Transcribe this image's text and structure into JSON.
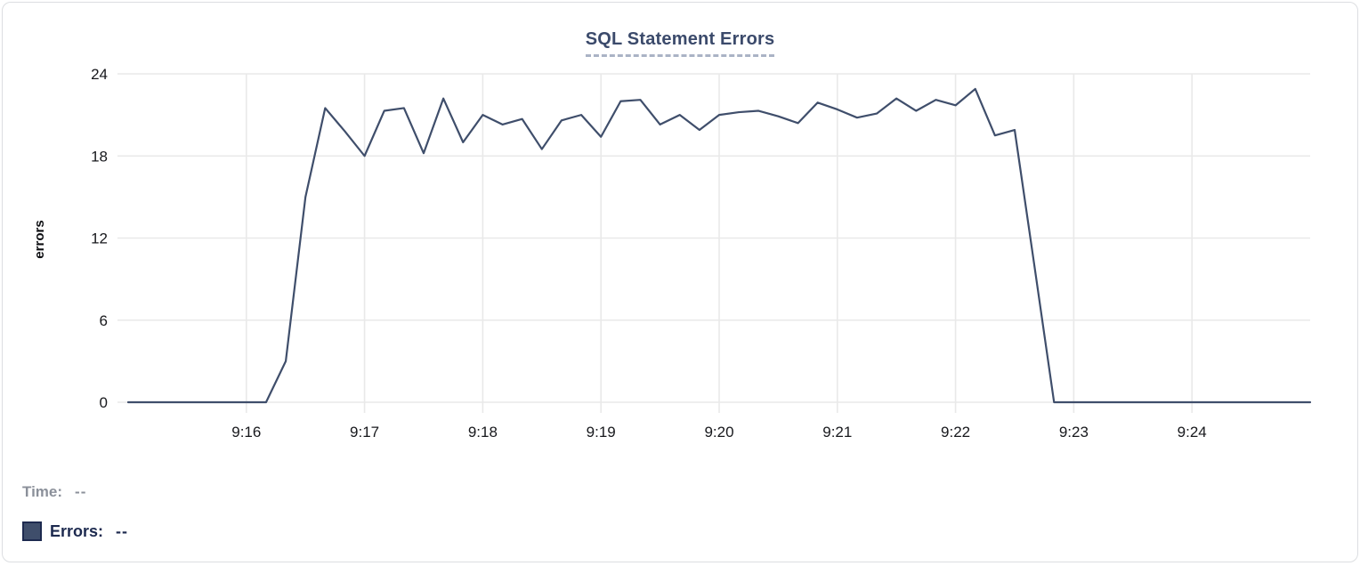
{
  "header": {
    "title": "SQL Statement Errors"
  },
  "legend": {
    "time_label": "Time:",
    "time_value": "--",
    "errors_label": "Errors:",
    "errors_value": "--"
  },
  "colors": {
    "line": "#3f4e6b",
    "title": "#3b4a6b",
    "grid": "#e9e9e9",
    "axis_text": "#17181c",
    "legend_time": "#8b909a",
    "legend_errors": "#1d2a4f",
    "swatch_fill": "#3f4e6b",
    "swatch_border": "#1d2a4f",
    "card_border": "#dcdee1"
  },
  "chart_data": {
    "type": "line",
    "title": "SQL Statement Errors",
    "xlabel": "",
    "ylabel": "errors",
    "ylim": [
      0,
      24
    ],
    "y_ticks": [
      0,
      6,
      12,
      18,
      24
    ],
    "x_tick_labels": [
      "9:16",
      "9:17",
      "9:18",
      "9:19",
      "9:20",
      "9:21",
      "9:22",
      "9:23",
      "9:24"
    ],
    "x_tick_seconds": [
      60,
      120,
      180,
      240,
      300,
      360,
      420,
      480,
      540
    ],
    "x_start": "9:15:00",
    "x_end": "9:25:00",
    "sample_interval_seconds": 10,
    "grid": true,
    "legend_position": "bottom-left",
    "series": [
      {
        "name": "Errors",
        "color": "#3f4e6b",
        "values": [
          0,
          0,
          0,
          0,
          0,
          0,
          0,
          0,
          3,
          15,
          21.5,
          19.8,
          18,
          21.3,
          21.5,
          18.2,
          22.2,
          19,
          21,
          20.3,
          20.7,
          18.5,
          20.6,
          21,
          19.4,
          22,
          22.1,
          20.3,
          21,
          19.9,
          21,
          21.2,
          21.3,
          20.9,
          20.4,
          21.9,
          21.4,
          20.8,
          21.1,
          22.2,
          21.3,
          22.1,
          21.7,
          22.9,
          19.5,
          19.9,
          10,
          0,
          0,
          0,
          0,
          0,
          0,
          0,
          0,
          0,
          0,
          0,
          0,
          0,
          0
        ]
      }
    ]
  }
}
